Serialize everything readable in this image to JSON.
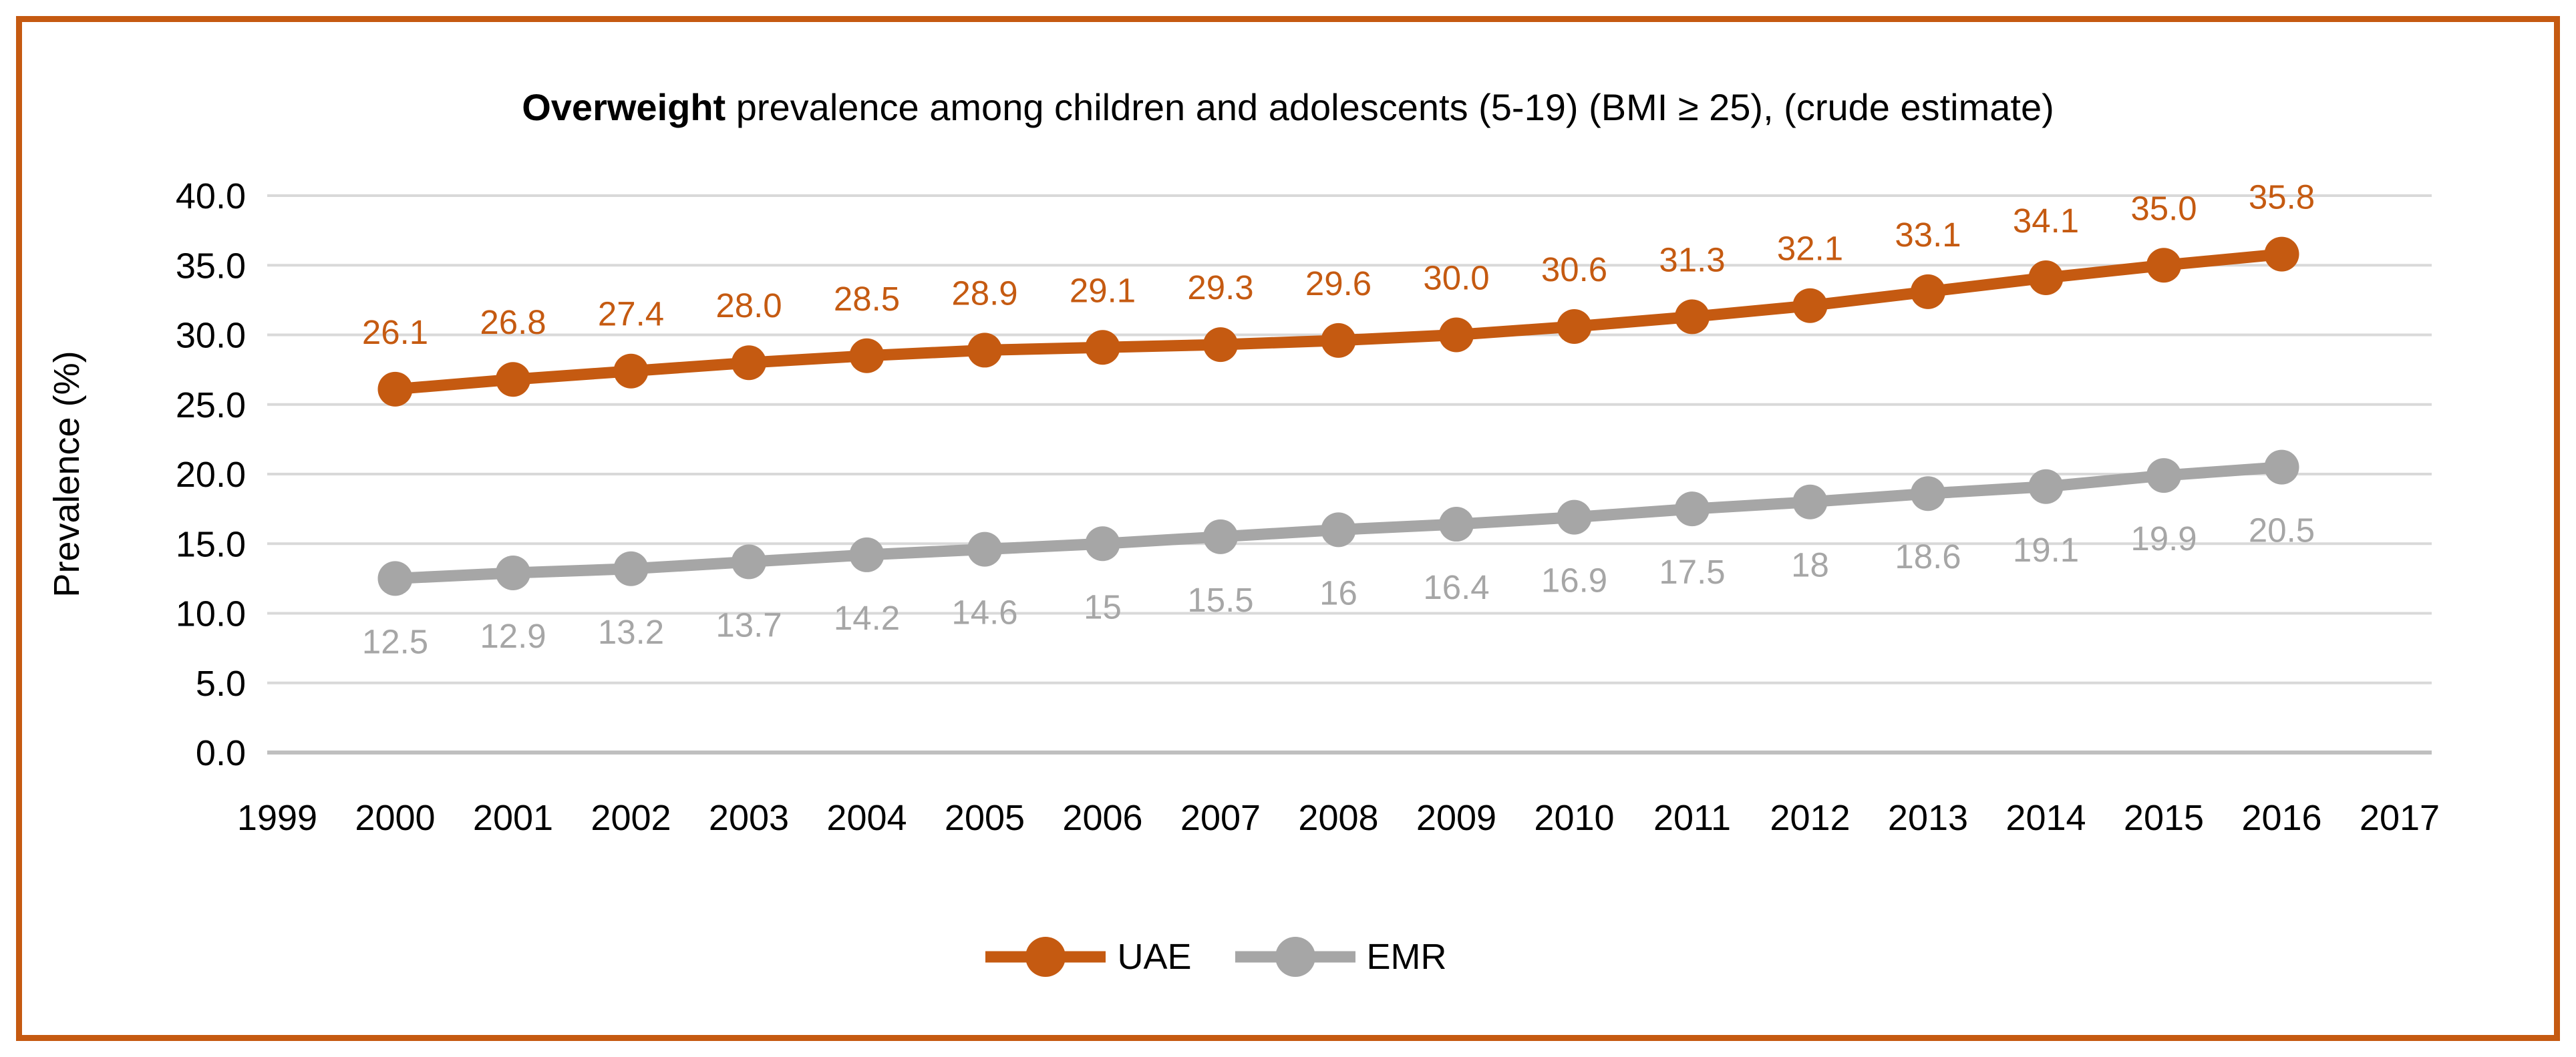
{
  "title": {
    "bold": "Overweight",
    "rest": " prevalence among children and adolescents (5-19) (BMI ≥ 25), (crude estimate)"
  },
  "colors": {
    "frame_border": "#C55A11",
    "gridline": "#D9D9D9",
    "axis_line": "#BFBFBF",
    "text": "#000000",
    "background": "#FFFFFF"
  },
  "chart_data": {
    "type": "line",
    "title": "Overweight prevalence among children and adolescents (5-19) (BMI ≥ 25), (crude estimate)",
    "xlabel": "",
    "ylabel": "Prevalence (%)",
    "ylim": [
      0,
      40
    ],
    "y_tick_step": 5,
    "grid": true,
    "legend_position": "bottom-center",
    "y_ticks": [
      "40.0",
      "35.0",
      "30.0",
      "25.0",
      "20.0",
      "15.0",
      "10.0",
      "5.0",
      "0.0"
    ],
    "x_ticks": [
      "1999",
      "2000",
      "2001",
      "2002",
      "2003",
      "2004",
      "2005",
      "2006",
      "2007",
      "2008",
      "2009",
      "2010",
      "2011",
      "2012",
      "2013",
      "2014",
      "2015",
      "2016",
      "2017"
    ],
    "categories": [
      "2000",
      "2001",
      "2002",
      "2003",
      "2004",
      "2005",
      "2006",
      "2007",
      "2008",
      "2009",
      "2010",
      "2011",
      "2012",
      "2013",
      "2014",
      "2015",
      "2016"
    ],
    "series": [
      {
        "name": "UAE",
        "color": "#C55A11",
        "label_position": "above",
        "values": [
          26.1,
          26.8,
          27.4,
          28.0,
          28.5,
          28.9,
          29.1,
          29.3,
          29.6,
          30.0,
          30.6,
          31.3,
          32.1,
          33.1,
          34.1,
          35.0,
          35.8
        ],
        "labels": [
          "26.1",
          "26.8",
          "27.4",
          "28.0",
          "28.5",
          "28.9",
          "29.1",
          "29.3",
          "29.6",
          "30.0",
          "30.6",
          "31.3",
          "32.1",
          "33.1",
          "34.1",
          "35.0",
          "35.8"
        ]
      },
      {
        "name": "EMR",
        "color": "#A6A6A6",
        "label_position": "below",
        "values": [
          12.5,
          12.9,
          13.2,
          13.7,
          14.2,
          14.6,
          15,
          15.5,
          16,
          16.4,
          16.9,
          17.5,
          18,
          18.6,
          19.1,
          19.9,
          20.5
        ],
        "labels": [
          "12.5",
          "12.9",
          "13.2",
          "13.7",
          "14.2",
          "14.6",
          "15",
          "15.5",
          "16",
          "16.4",
          "16.9",
          "17.5",
          "18",
          "18.6",
          "19.1",
          "19.9",
          "20.5"
        ]
      }
    ]
  }
}
